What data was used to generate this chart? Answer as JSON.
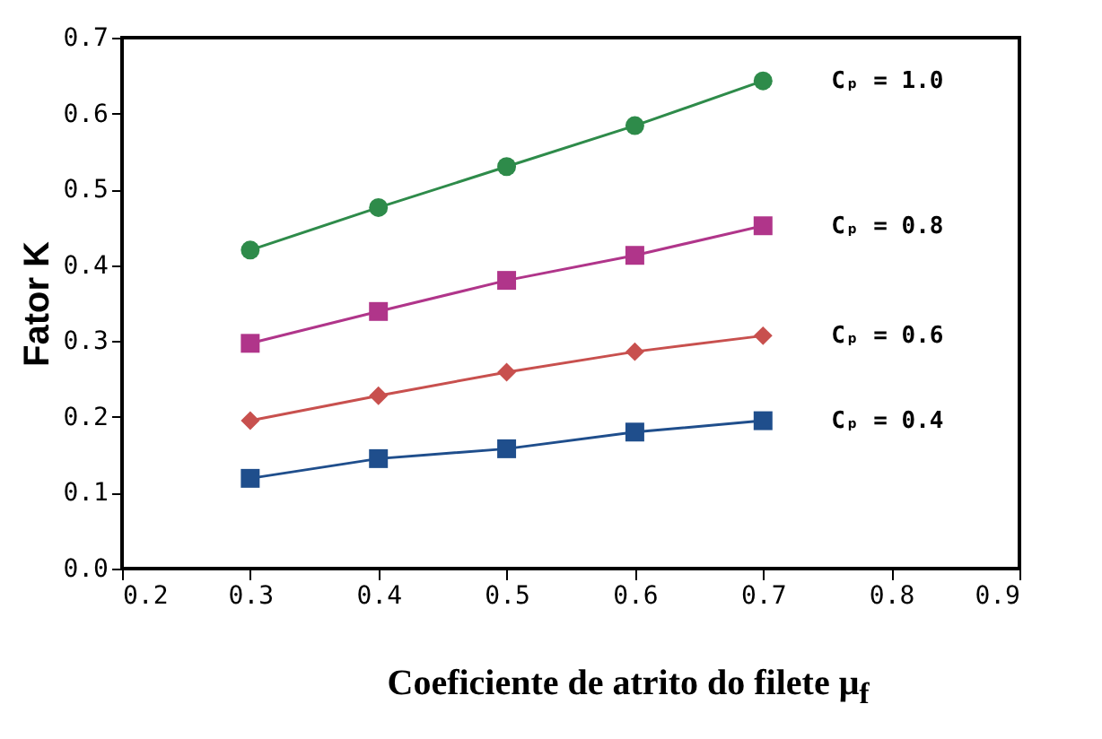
{
  "chart_data": {
    "type": "line",
    "xlabel": "Coeficiente de atrito do filete μ$_{f}$",
    "ylabel": "Fator K",
    "x": [
      0.3,
      0.4,
      0.5,
      0.6,
      0.7
    ],
    "series": [
      {
        "name": "Cₚ = 1.0",
        "color": "#2e8b4a",
        "marker": "circle",
        "values": [
          0.42,
          0.476,
          0.53,
          0.584,
          0.643
        ]
      },
      {
        "name": "Cₚ = 0.8",
        "color": "#b0358a",
        "marker": "square",
        "values": [
          0.297,
          0.339,
          0.38,
          0.413,
          0.452
        ]
      },
      {
        "name": "Cₚ = 0.6",
        "color": "#c8504e",
        "marker": "diamond",
        "values": [
          0.195,
          0.228,
          0.259,
          0.286,
          0.307
        ]
      },
      {
        "name": "Cₚ = 0.4",
        "color": "#1f4e8c",
        "marker": "square",
        "values": [
          0.119,
          0.145,
          0.158,
          0.18,
          0.195
        ]
      }
    ],
    "xlim": [
      0.2,
      0.9
    ],
    "xticks": [
      0.2,
      0.3,
      0.4,
      0.5,
      0.6,
      0.7,
      0.8,
      0.9
    ],
    "ylim": [
      0,
      0.7
    ],
    "yticks": [
      {
        "value": 0,
        "label": "0.0"
      },
      0.1,
      0.2,
      0.3,
      0.4,
      0.5,
      0.6,
      0.7
    ],
    "line_style": "solid"
  }
}
